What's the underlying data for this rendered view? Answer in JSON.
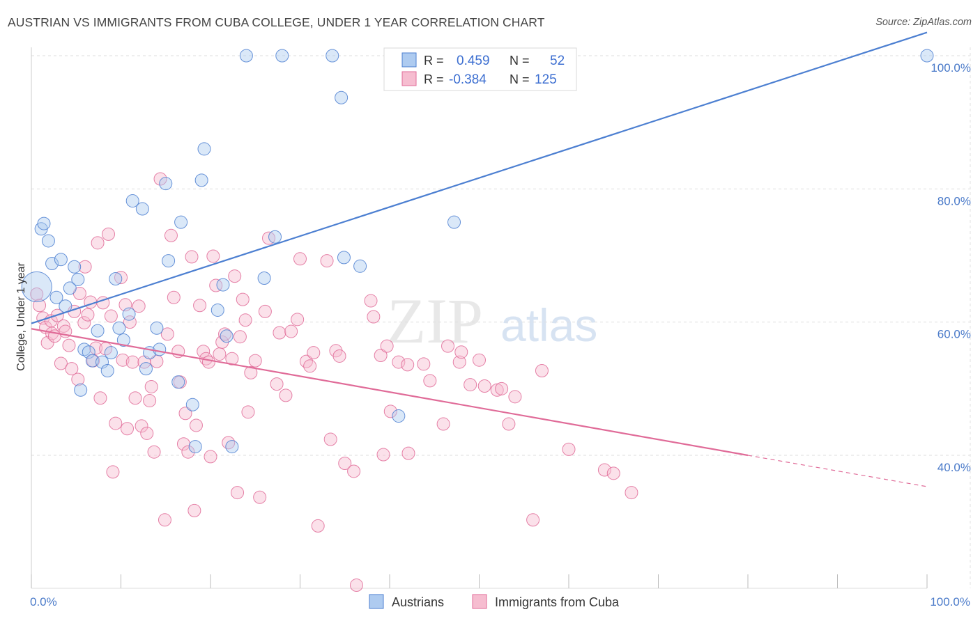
{
  "header": {
    "title": "AUSTRIAN VS IMMIGRANTS FROM CUBA COLLEGE, UNDER 1 YEAR CORRELATION CHART",
    "source": "Source: ZipAtlas.com"
  },
  "watermark": {
    "zip": "ZIP",
    "atlas": "atlas"
  },
  "colors": {
    "blue": "#4c7fd1",
    "blue_fill": "#aecbf0",
    "pink": "#e06b98",
    "pink_fill": "#f6bdd0",
    "grid": "#dddddd",
    "tick": "#4a7ac9"
  },
  "chart_data": {
    "type": "scatter",
    "title": "AUSTRIAN VS IMMIGRANTS FROM CUBA COLLEGE, UNDER 1 YEAR CORRELATION CHART",
    "xlabel": "",
    "ylabel": "College, Under 1 year",
    "xlim": [
      0,
      100
    ],
    "ylim": [
      20,
      102
    ],
    "x_tick_labels": [
      "0.0%",
      "100.0%"
    ],
    "y_tick_labels": [
      "40.0%",
      "60.0%",
      "80.0%",
      "100.0%"
    ],
    "y_ticks": [
      40,
      60,
      80,
      100
    ],
    "legend": {
      "items": [
        {
          "r_label": "R =",
          "r_value": "0.459",
          "n_label": "N =",
          "n_value": "52"
        },
        {
          "r_label": "R =",
          "r_value": "-0.384",
          "n_label": "N =",
          "n_value": "125"
        }
      ]
    },
    "bottom_legend": [
      "Austrians",
      "Immigrants from Cuba"
    ],
    "series": [
      {
        "name": "Austrians",
        "color": "#4c7fd1",
        "trend": {
          "x0": 0,
          "y0": 59.8,
          "x1": 100,
          "y1": 103.5
        },
        "points": [
          [
            0.6,
            65.3,
            2.4
          ],
          [
            1.1,
            74.0,
            1
          ],
          [
            1.4,
            74.8,
            1
          ],
          [
            1.9,
            72.2,
            1
          ],
          [
            2.3,
            68.8,
            1
          ],
          [
            2.8,
            63.7,
            1
          ],
          [
            3.3,
            69.4,
            1
          ],
          [
            3.8,
            62.4,
            1
          ],
          [
            4.3,
            65.1,
            1
          ],
          [
            4.8,
            68.3,
            1
          ],
          [
            5.2,
            66.4,
            1
          ],
          [
            5.5,
            49.8,
            1
          ],
          [
            5.9,
            55.9,
            1
          ],
          [
            6.4,
            55.5,
            1
          ],
          [
            6.8,
            54.2,
            1
          ],
          [
            7.4,
            58.7,
            1
          ],
          [
            7.9,
            54.0,
            1
          ],
          [
            8.5,
            52.7,
            1
          ],
          [
            8.9,
            55.4,
            1
          ],
          [
            9.4,
            66.5,
            1
          ],
          [
            9.8,
            59.1,
            1
          ],
          [
            10.3,
            57.3,
            1
          ],
          [
            10.9,
            61.2,
            1
          ],
          [
            11.3,
            78.2,
            1
          ],
          [
            12.4,
            77.0,
            1
          ],
          [
            12.8,
            53.0,
            1
          ],
          [
            13.2,
            55.4,
            1
          ],
          [
            14.0,
            59.1,
            1
          ],
          [
            14.3,
            55.9,
            1
          ],
          [
            15.0,
            80.8,
            1
          ],
          [
            15.3,
            69.2,
            1
          ],
          [
            16.4,
            51.0,
            1
          ],
          [
            16.7,
            75.0,
            1
          ],
          [
            18.0,
            47.6,
            1
          ],
          [
            18.3,
            41.3,
            1
          ],
          [
            19.0,
            81.3,
            1
          ],
          [
            19.3,
            86.0,
            1
          ],
          [
            20.8,
            61.8,
            1
          ],
          [
            21.4,
            65.6,
            1
          ],
          [
            21.8,
            57.9,
            1
          ],
          [
            22.4,
            41.3,
            1
          ],
          [
            24.0,
            100.0,
            1
          ],
          [
            26.0,
            66.6,
            1
          ],
          [
            27.2,
            72.8,
            1
          ],
          [
            28.0,
            100.0,
            1
          ],
          [
            33.6,
            100.0,
            1
          ],
          [
            34.6,
            93.7,
            1
          ],
          [
            34.9,
            69.7,
            1
          ],
          [
            36.7,
            68.4,
            1
          ],
          [
            41.0,
            45.9,
            1
          ],
          [
            47.2,
            75.0,
            1
          ],
          [
            100.0,
            100.0,
            1
          ]
        ]
      },
      {
        "name": "Immigrants from Cuba",
        "color": "#e06b98",
        "trend": {
          "x0": 0,
          "y0": 59.0,
          "x1": 80,
          "y1": 40.0,
          "dash_to_x": 100,
          "dash_to_y": 35.3
        },
        "points": [
          [
            0.6,
            64.2,
            1
          ],
          [
            0.9,
            62.5,
            1
          ],
          [
            1.3,
            60.6,
            1
          ],
          [
            1.6,
            59.2,
            1
          ],
          [
            1.8,
            56.9,
            1
          ],
          [
            2.2,
            60.2,
            1
          ],
          [
            2.3,
            58.3,
            1
          ],
          [
            2.6,
            57.9,
            1
          ],
          [
            2.9,
            61.0,
            1
          ],
          [
            3.3,
            53.8,
            1
          ],
          [
            3.6,
            59.4,
            1
          ],
          [
            3.8,
            58.6,
            1
          ],
          [
            4.2,
            56.5,
            1
          ],
          [
            4.5,
            53.0,
            1
          ],
          [
            4.8,
            61.6,
            1
          ],
          [
            5.2,
            51.4,
            1
          ],
          [
            5.4,
            64.3,
            1
          ],
          [
            5.9,
            59.9,
            1
          ],
          [
            6.0,
            68.3,
            1
          ],
          [
            6.3,
            61.1,
            1
          ],
          [
            6.6,
            63.0,
            1
          ],
          [
            6.9,
            54.2,
            1
          ],
          [
            7.2,
            56.1,
            1
          ],
          [
            7.4,
            71.9,
            1
          ],
          [
            7.7,
            48.6,
            1
          ],
          [
            8.0,
            62.9,
            1
          ],
          [
            8.3,
            56.0,
            1
          ],
          [
            8.6,
            73.2,
            1
          ],
          [
            8.9,
            60.9,
            1
          ],
          [
            9.1,
            37.5,
            1
          ],
          [
            9.4,
            44.8,
            1
          ],
          [
            10.0,
            66.7,
            1
          ],
          [
            10.2,
            54.3,
            1
          ],
          [
            10.5,
            62.6,
            1
          ],
          [
            10.7,
            44.0,
            1
          ],
          [
            11.0,
            60.0,
            1
          ],
          [
            11.3,
            54.0,
            1
          ],
          [
            11.6,
            48.6,
            1
          ],
          [
            12.0,
            62.4,
            1
          ],
          [
            12.3,
            44.4,
            1
          ],
          [
            12.6,
            54.0,
            1
          ],
          [
            12.9,
            43.3,
            1
          ],
          [
            13.2,
            48.2,
            1
          ],
          [
            13.4,
            50.3,
            1
          ],
          [
            13.7,
            40.5,
            1
          ],
          [
            14.0,
            54.1,
            1
          ],
          [
            14.4,
            81.5,
            1
          ],
          [
            14.9,
            30.3,
            1
          ],
          [
            15.2,
            58.2,
            1
          ],
          [
            15.6,
            73.0,
            1
          ],
          [
            15.9,
            63.7,
            1
          ],
          [
            16.4,
            55.6,
            1
          ],
          [
            16.6,
            51.0,
            1
          ],
          [
            17.0,
            41.7,
            1
          ],
          [
            17.2,
            46.3,
            1
          ],
          [
            17.5,
            40.5,
            1
          ],
          [
            17.9,
            69.8,
            1
          ],
          [
            18.2,
            31.7,
            1
          ],
          [
            18.4,
            44.5,
            1
          ],
          [
            18.8,
            62.5,
            1
          ],
          [
            19.2,
            55.6,
            1
          ],
          [
            19.5,
            54.5,
            1
          ],
          [
            19.8,
            54.0,
            1
          ],
          [
            20.0,
            39.8,
            1
          ],
          [
            20.3,
            69.9,
            1
          ],
          [
            20.6,
            65.5,
            1
          ],
          [
            21.0,
            55.2,
            1
          ],
          [
            21.3,
            57.0,
            1
          ],
          [
            21.6,
            58.2,
            1
          ],
          [
            22.0,
            41.9,
            1
          ],
          [
            22.4,
            54.5,
            1
          ],
          [
            22.7,
            66.9,
            1
          ],
          [
            23.0,
            34.4,
            1
          ],
          [
            23.3,
            57.8,
            1
          ],
          [
            23.6,
            63.4,
            1
          ],
          [
            23.9,
            60.3,
            1
          ],
          [
            24.2,
            46.5,
            1
          ],
          [
            24.5,
            52.4,
            1
          ],
          [
            25.0,
            54.2,
            1
          ],
          [
            25.5,
            33.7,
            1
          ],
          [
            26.1,
            61.6,
            1
          ],
          [
            26.5,
            72.6,
            1
          ],
          [
            27.4,
            50.7,
            1
          ],
          [
            27.7,
            58.4,
            1
          ],
          [
            28.4,
            49.0,
            1
          ],
          [
            29.0,
            58.6,
            1
          ],
          [
            29.7,
            60.4,
            1
          ],
          [
            30.0,
            69.5,
            1
          ],
          [
            30.7,
            54.1,
            1
          ],
          [
            31.1,
            53.4,
            1
          ],
          [
            31.5,
            55.4,
            1
          ],
          [
            32.0,
            29.4,
            1
          ],
          [
            33.0,
            69.2,
            1
          ],
          [
            33.4,
            42.4,
            1
          ],
          [
            34.0,
            55.7,
            1
          ],
          [
            34.4,
            54.9,
            1
          ],
          [
            35.0,
            38.8,
            1
          ],
          [
            36.0,
            37.6,
            1
          ],
          [
            37.9,
            63.2,
            1
          ],
          [
            38.2,
            60.8,
            1
          ],
          [
            39.0,
            55.0,
            1
          ],
          [
            39.3,
            40.1,
            1
          ],
          [
            39.7,
            56.4,
            1
          ],
          [
            40.1,
            46.6,
            1
          ],
          [
            41.0,
            54.0,
            1
          ],
          [
            42.0,
            53.6,
            1
          ],
          [
            42.1,
            40.3,
            1
          ],
          [
            43.8,
            53.7,
            1
          ],
          [
            44.5,
            51.2,
            1
          ],
          [
            46.0,
            44.7,
            1
          ],
          [
            46.5,
            56.4,
            1
          ],
          [
            47.8,
            54.0,
            1
          ],
          [
            48.0,
            55.5,
            1
          ],
          [
            49.0,
            50.6,
            1
          ],
          [
            50.0,
            54.3,
            1
          ],
          [
            50.6,
            50.4,
            1
          ],
          [
            52.0,
            49.8,
            1
          ],
          [
            52.5,
            50.0,
            1
          ],
          [
            53.3,
            44.7,
            1
          ],
          [
            54.0,
            48.8,
            1
          ],
          [
            56.0,
            30.3,
            1
          ],
          [
            57.0,
            52.7,
            1
          ],
          [
            60.0,
            40.9,
            1
          ],
          [
            64.0,
            37.8,
            1
          ],
          [
            65.0,
            37.3,
            1
          ],
          [
            67.0,
            34.4,
            1
          ],
          [
            36.3,
            20.5,
            1
          ]
        ]
      }
    ]
  }
}
